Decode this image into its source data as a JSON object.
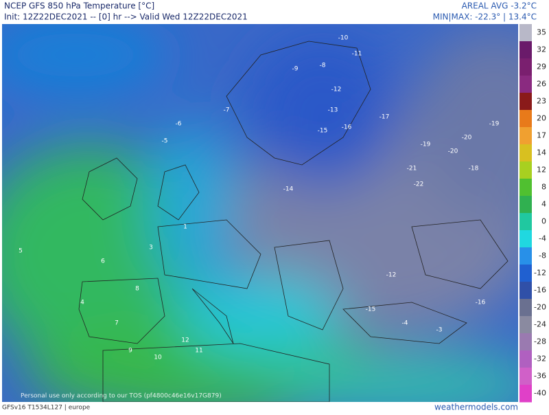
{
  "header": {
    "title": "NCEP GFS 850 hPa Temperature [°C]",
    "subtitle": "Init: 12Z22DEC2021 -- [0] hr --> Valid Wed 12Z22DEC2021",
    "areal_avg": "AREAL AVG -3.2°C",
    "minmax": "MIN|MAX: -22.3° | 13.4°C"
  },
  "colorbar": {
    "ticks": [
      35,
      32,
      29,
      26,
      23,
      20,
      17,
      14,
      12,
      8,
      4,
      0,
      -4,
      -8,
      -12,
      -16,
      -20,
      -24,
      -28,
      -32,
      -36,
      -40
    ],
    "colors": [
      "#b8b8c8",
      "#6a1a6a",
      "#7a1f6f",
      "#8a2a80",
      "#8a1a1a",
      "#e87a1a",
      "#f0a030",
      "#d8c020",
      "#a8d020",
      "#50c030",
      "#30b050",
      "#20c8a0",
      "#20d8e0",
      "#2890e8",
      "#2060d0",
      "#3050a8",
      "#6a7090",
      "#8a8aa0",
      "#9a7ab0",
      "#b060c0",
      "#d060c8",
      "#e040c8"
    ]
  },
  "map_labels": [
    -10,
    -11,
    -9,
    -8,
    -12,
    -13,
    -15,
    -16,
    -17,
    -19,
    -20,
    -21,
    -22,
    -18,
    -14,
    -7,
    -6,
    -5,
    5,
    6,
    7,
    8,
    9,
    10,
    11,
    -4,
    -3,
    1,
    3,
    4,
    12,
    -12,
    -16,
    -19,
    -20,
    -15
  ],
  "watermark": "Personal use only according to our TOS (pf4800c46e16v17G879)",
  "footer": {
    "model": "GFSv16 T1534L127 | europe",
    "site": "weathermodels.com"
  }
}
